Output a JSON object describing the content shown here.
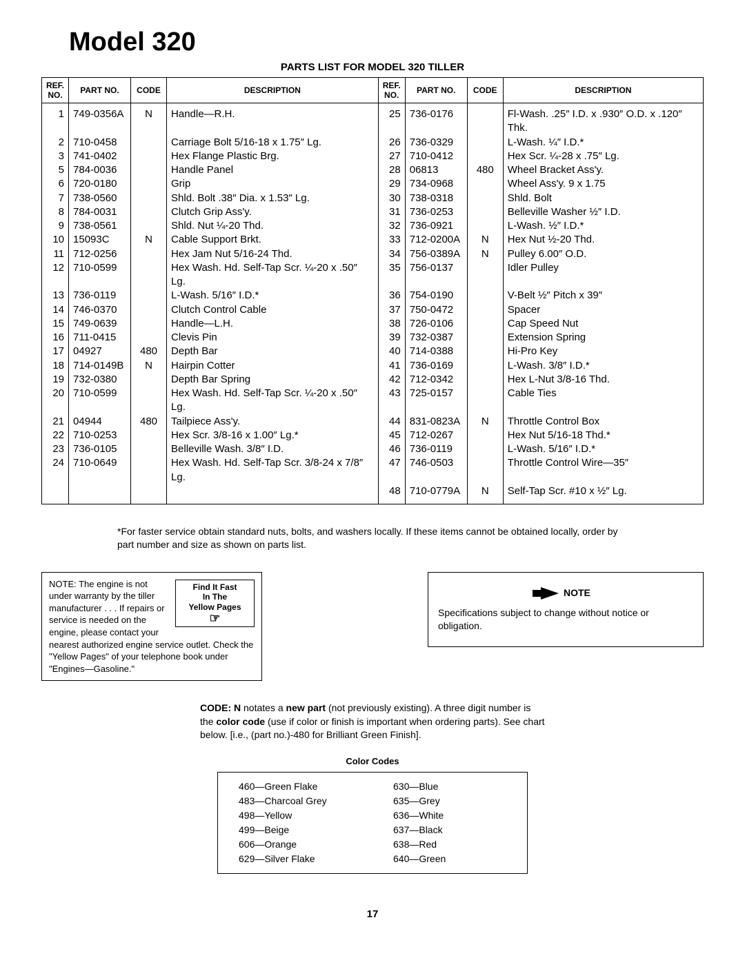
{
  "title": "Model 320",
  "subtitle": "PARTS LIST FOR MODEL 320 TILLER",
  "headers": {
    "ref": "REF. NO.",
    "part": "PART NO.",
    "code": "CODE",
    "desc": "DESCRIPTION"
  },
  "left_rows": [
    {
      "ref": "1",
      "part": "749-0356A",
      "code": "N",
      "desc": "Handle—R.H."
    },
    {
      "ref": "2",
      "part": "710-0458",
      "code": "",
      "desc": "Carriage Bolt 5/16-18 x 1.75″ Lg."
    },
    {
      "ref": "3",
      "part": "741-0402",
      "code": "",
      "desc": "Hex Flange Plastic Brg."
    },
    {
      "ref": "5",
      "part": "784-0036",
      "code": "",
      "desc": "Handle Panel"
    },
    {
      "ref": "6",
      "part": "720-0180",
      "code": "",
      "desc": "Grip"
    },
    {
      "ref": "7",
      "part": "738-0560",
      "code": "",
      "desc": "Shld. Bolt .38″ Dia. x 1.53″ Lg."
    },
    {
      "ref": "8",
      "part": "784-0031",
      "code": "",
      "desc": "Clutch Grip Ass'y."
    },
    {
      "ref": "9",
      "part": "738-0561",
      "code": "",
      "desc": "Shld. Nut ¼-20 Thd."
    },
    {
      "ref": "10",
      "part": "15093C",
      "code": "N",
      "desc": "Cable Support Brkt."
    },
    {
      "ref": "11",
      "part": "712-0256",
      "code": "",
      "desc": "Hex Jam Nut 5/16-24 Thd."
    },
    {
      "ref": "12",
      "part": "710-0599",
      "code": "",
      "desc": "Hex Wash. Hd. Self-Tap Scr. ¼-20 x .50″ Lg."
    },
    {
      "ref": "13",
      "part": "736-0119",
      "code": "",
      "desc": "L-Wash. 5/16″ I.D.*"
    },
    {
      "ref": "14",
      "part": "746-0370",
      "code": "",
      "desc": "Clutch Control Cable"
    },
    {
      "ref": "15",
      "part": "749-0639",
      "code": "",
      "desc": "Handle—L.H."
    },
    {
      "ref": "16",
      "part": "711-0415",
      "code": "",
      "desc": "Clevis Pin"
    },
    {
      "ref": "17",
      "part": "04927",
      "code": "480",
      "desc": "Depth Bar"
    },
    {
      "ref": "18",
      "part": "714-0149B",
      "code": "N",
      "desc": "Hairpin Cotter"
    },
    {
      "ref": "19",
      "part": "732-0380",
      "code": "",
      "desc": "Depth Bar Spring"
    },
    {
      "ref": "20",
      "part": "710-0599",
      "code": "",
      "desc": "Hex Wash. Hd. Self-Tap Scr. ¼-20 x .50″ Lg."
    },
    {
      "ref": "21",
      "part": "04944",
      "code": "480",
      "desc": "Tailpiece Ass'y."
    },
    {
      "ref": "22",
      "part": "710-0253",
      "code": "",
      "desc": "Hex Scr. 3/8-16 x 1.00″ Lg.*"
    },
    {
      "ref": "23",
      "part": "736-0105",
      "code": "",
      "desc": "Belleville Wash. 3/8″ I.D."
    },
    {
      "ref": "24",
      "part": "710-0649",
      "code": "",
      "desc": "Hex Wash. Hd. Self-Tap Scr. 3/8-24 x 7/8″ Lg."
    }
  ],
  "right_rows": [
    {
      "ref": "25",
      "part": "736-0176",
      "code": "",
      "desc": "Fl-Wash. .25″ I.D. x .930″ O.D. x .120″ Thk."
    },
    {
      "ref": "26",
      "part": "736-0329",
      "code": "",
      "desc": "L-Wash. ¼″ I.D.*"
    },
    {
      "ref": "27",
      "part": "710-0412",
      "code": "",
      "desc": "Hex Scr. ¼-28 x .75″ Lg."
    },
    {
      "ref": "28",
      "part": "06813",
      "code": "480",
      "desc": "Wheel Bracket Ass'y."
    },
    {
      "ref": "29",
      "part": "734-0968",
      "code": "",
      "desc": "Wheel Ass'y. 9 x 1.75"
    },
    {
      "ref": "30",
      "part": "738-0318",
      "code": "",
      "desc": "Shld. Bolt"
    },
    {
      "ref": "31",
      "part": "736-0253",
      "code": "",
      "desc": "Belleville Washer ½″ I.D."
    },
    {
      "ref": "32",
      "part": "736-0921",
      "code": "",
      "desc": "L-Wash. ½″ I.D.*"
    },
    {
      "ref": "33",
      "part": "712-0200A",
      "code": "N",
      "desc": "Hex Nut ½-20 Thd."
    },
    {
      "ref": "34",
      "part": "756-0389A",
      "code": "N",
      "desc": "Pulley 6.00″ O.D."
    },
    {
      "ref": "35",
      "part": "756-0137",
      "code": "",
      "desc": "Idler Pulley"
    },
    {
      "ref": "36",
      "part": "754-0190",
      "code": "",
      "desc": "V-Belt ½″ Pitch x 39″"
    },
    {
      "ref": "37",
      "part": "750-0472",
      "code": "",
      "desc": "Spacer"
    },
    {
      "ref": "38",
      "part": "726-0106",
      "code": "",
      "desc": "Cap Speed Nut"
    },
    {
      "ref": "39",
      "part": "732-0387",
      "code": "",
      "desc": "Extension Spring"
    },
    {
      "ref": "40",
      "part": "714-0388",
      "code": "",
      "desc": "Hi-Pro Key"
    },
    {
      "ref": "41",
      "part": "736-0169",
      "code": "",
      "desc": "L-Wash. 3/8″ I.D.*"
    },
    {
      "ref": "42",
      "part": "712-0342",
      "code": "",
      "desc": "Hex L-Nut 3/8-16 Thd."
    },
    {
      "ref": "43",
      "part": "725-0157",
      "code": "",
      "desc": "Cable Ties"
    },
    {
      "ref": "44",
      "part": "831-0823A",
      "code": "N",
      "desc": "Throttle Control Box"
    },
    {
      "ref": "45",
      "part": "712-0267",
      "code": "",
      "desc": "Hex Nut 5/16-18 Thd.*"
    },
    {
      "ref": "46",
      "part": "736-0119",
      "code": "",
      "desc": "L-Wash. 5/16″ I.D.*"
    },
    {
      "ref": "47",
      "part": "746-0503",
      "code": "",
      "desc": "Throttle Control Wire—35″"
    },
    {
      "ref": "48",
      "part": "710-0779A",
      "code": "N",
      "desc": "Self-Tap Scr. #10 x ½″ Lg."
    }
  ],
  "footnote": "*For faster service obtain standard nuts, bolts, and washers locally. If these items cannot be obtained locally, order by part number and size as shown on parts list.",
  "engine_note": "NOTE: The engine is not under warranty by the tiller manufacturer . . . If repairs or service is needed on the engine, please contact your nearest authorized engine service outlet. Check the \"Yellow Pages\" of your telephone book under \"Engines—Gasoline.\"",
  "find_it": {
    "l1": "Find It Fast",
    "l2": "In The",
    "l3": "Yellow Pages"
  },
  "spec_note_label": "NOTE",
  "spec_note": "Specifications subject to change without notice or obligation.",
  "code_explain_prefix": "CODE: N",
  "code_explain_mid1": " notates a ",
  "code_explain_bold2": "new part",
  "code_explain_mid2": " (not previously existing). A three digit number is the ",
  "code_explain_bold3": "color code",
  "code_explain_rest": " (use if color or finish is important when ordering parts). See chart below. [i.e., (part no.)-480 for Brilliant Green Finish].",
  "color_codes_title": "Color Codes",
  "color_left": [
    "460—Green Flake",
    "483—Charcoal Grey",
    "498—Yellow",
    "499—Beige",
    "606—Orange",
    "629—Silver Flake"
  ],
  "color_right": [
    "630—Blue",
    "635—Grey",
    "636—White",
    "637—Black",
    "638—Red",
    "640—Green"
  ],
  "page_number": "17"
}
